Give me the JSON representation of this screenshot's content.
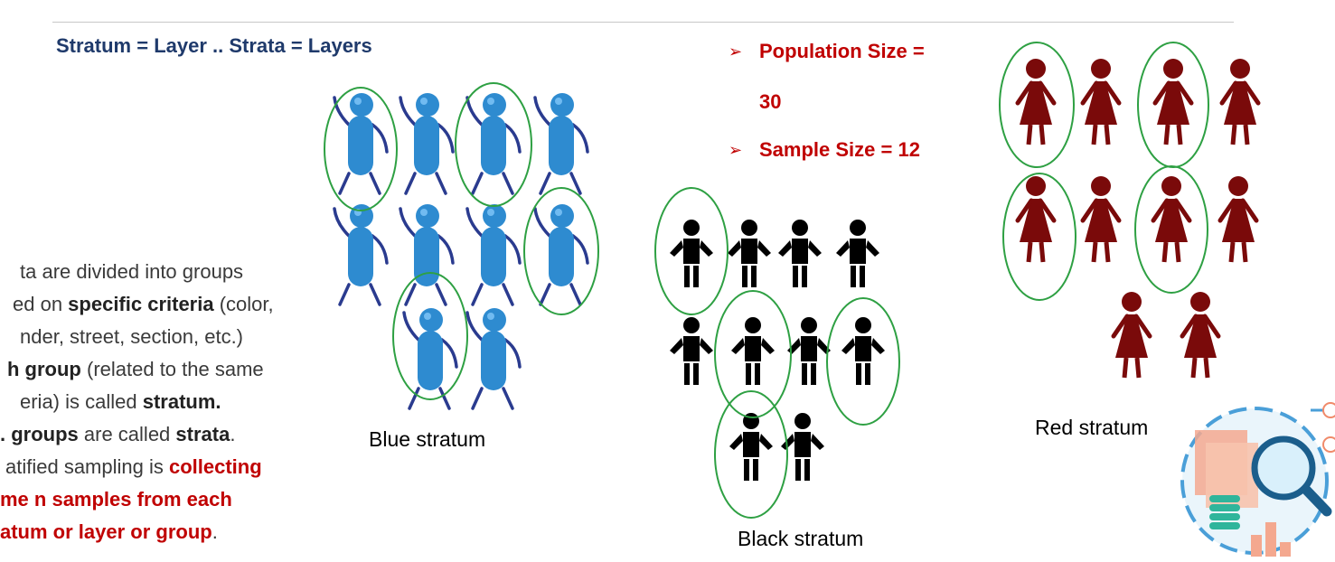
{
  "heading": "Stratum = Layer .. Strata = Layers",
  "body_lines": [
    {
      "parts": [
        {
          "t": "ta are divided into groups",
          "s": "n"
        }
      ]
    },
    {
      "parts": [
        {
          "t": "ed on ",
          "s": "n"
        },
        {
          "t": "specific criteria",
          "s": "b"
        },
        {
          "t": " (color,",
          "s": "n"
        }
      ]
    },
    {
      "parts": [
        {
          "t": "nder, street, section, etc.)",
          "s": "n"
        }
      ]
    },
    {
      "parts": [
        {
          "t": "h group",
          "s": "b"
        },
        {
          "t": " (related to the same",
          "s": "n"
        }
      ]
    },
    {
      "parts": [
        {
          "t": "eria) is called ",
          "s": "n"
        },
        {
          "t": "stratum.",
          "s": "b"
        }
      ]
    },
    {
      "parts": [
        {
          "t": ". groups",
          "s": "b"
        },
        {
          "t": " are called ",
          "s": "n"
        },
        {
          "t": "strata",
          "s": "b"
        },
        {
          "t": ".",
          "s": "n"
        }
      ]
    },
    {
      "parts": [
        {
          "t": "atified sampling is ",
          "s": "n"
        },
        {
          "t": "collecting",
          "s": "r"
        }
      ]
    },
    {
      "parts": [
        {
          "t": "me n samples from each",
          "s": "r"
        }
      ]
    },
    {
      "parts": [
        {
          "t": "atum or layer or group",
          "s": "r"
        },
        {
          "t": ".",
          "s": "n"
        }
      ]
    }
  ],
  "bullets": {
    "population_line1": "Population Size =",
    "population_line2": "30",
    "sample": "Sample Size = 12",
    "arrow_glyph": "➢"
  },
  "captions": {
    "blue": "Blue stratum",
    "black": "Black stratum",
    "red": "Red stratum"
  },
  "colors": {
    "heading": "#1f3a6b",
    "accent_red": "#c00000",
    "blue_figure": "#2e8bd0",
    "black_figure": "#000000",
    "red_figure": "#7a0a0a",
    "circle": "#2ea043"
  }
}
